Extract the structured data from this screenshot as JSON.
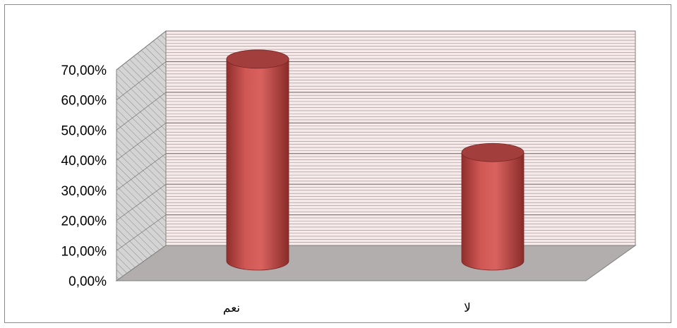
{
  "chart_data": {
    "type": "bar",
    "style": "3d-cylinder",
    "categories": [
      "نعم",
      "لا"
    ],
    "values": [
      0.67,
      0.36
    ],
    "ylim": [
      0,
      0.7
    ],
    "yticks": [
      "0,00%",
      "10,00%",
      "20,00%",
      "30,00%",
      "40,00%",
      "50,00%",
      "60,00%",
      "70,00%"
    ],
    "grid": true,
    "legend": "none",
    "title": "",
    "xlabel": "",
    "ylabel": ""
  },
  "colors": {
    "bar_fill": "#c0504d",
    "bar_top": "#a23f3c",
    "wall_fill": "#f6eaea",
    "wall_grid": "#9a8a8a",
    "side_wall": "#d2d2d2",
    "floor_fill": "#b3aeae"
  }
}
